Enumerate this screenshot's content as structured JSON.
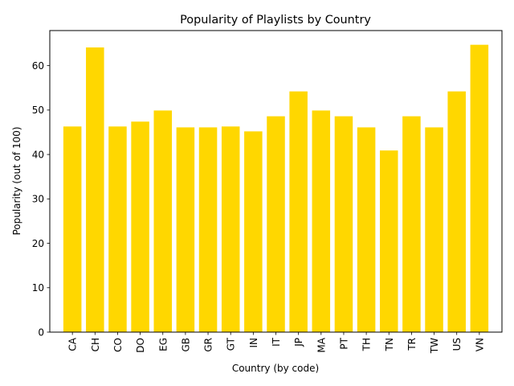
{
  "chart_data": {
    "type": "bar",
    "title": "Popularity of Playlists by Country",
    "xlabel": "Country (by code)",
    "ylabel": "Popularity (out of 100)",
    "categories": [
      "CA",
      "CH",
      "CO",
      "DO",
      "EG",
      "GB",
      "GR",
      "GT",
      "IN",
      "IT",
      "JP",
      "MA",
      "PT",
      "TH",
      "TN",
      "TR",
      "TW",
      "US",
      "VN"
    ],
    "values": [
      46.3,
      64.1,
      46.3,
      47.4,
      49.9,
      46.1,
      46.1,
      46.3,
      45.2,
      48.6,
      54.2,
      49.9,
      48.6,
      46.1,
      40.9,
      48.6,
      46.1,
      54.2,
      64.7
    ],
    "ylim": [
      0,
      67.9
    ],
    "yticks": [
      0,
      10,
      20,
      30,
      40,
      50,
      60
    ],
    "grid": false,
    "bar_color": "#FFD700"
  }
}
